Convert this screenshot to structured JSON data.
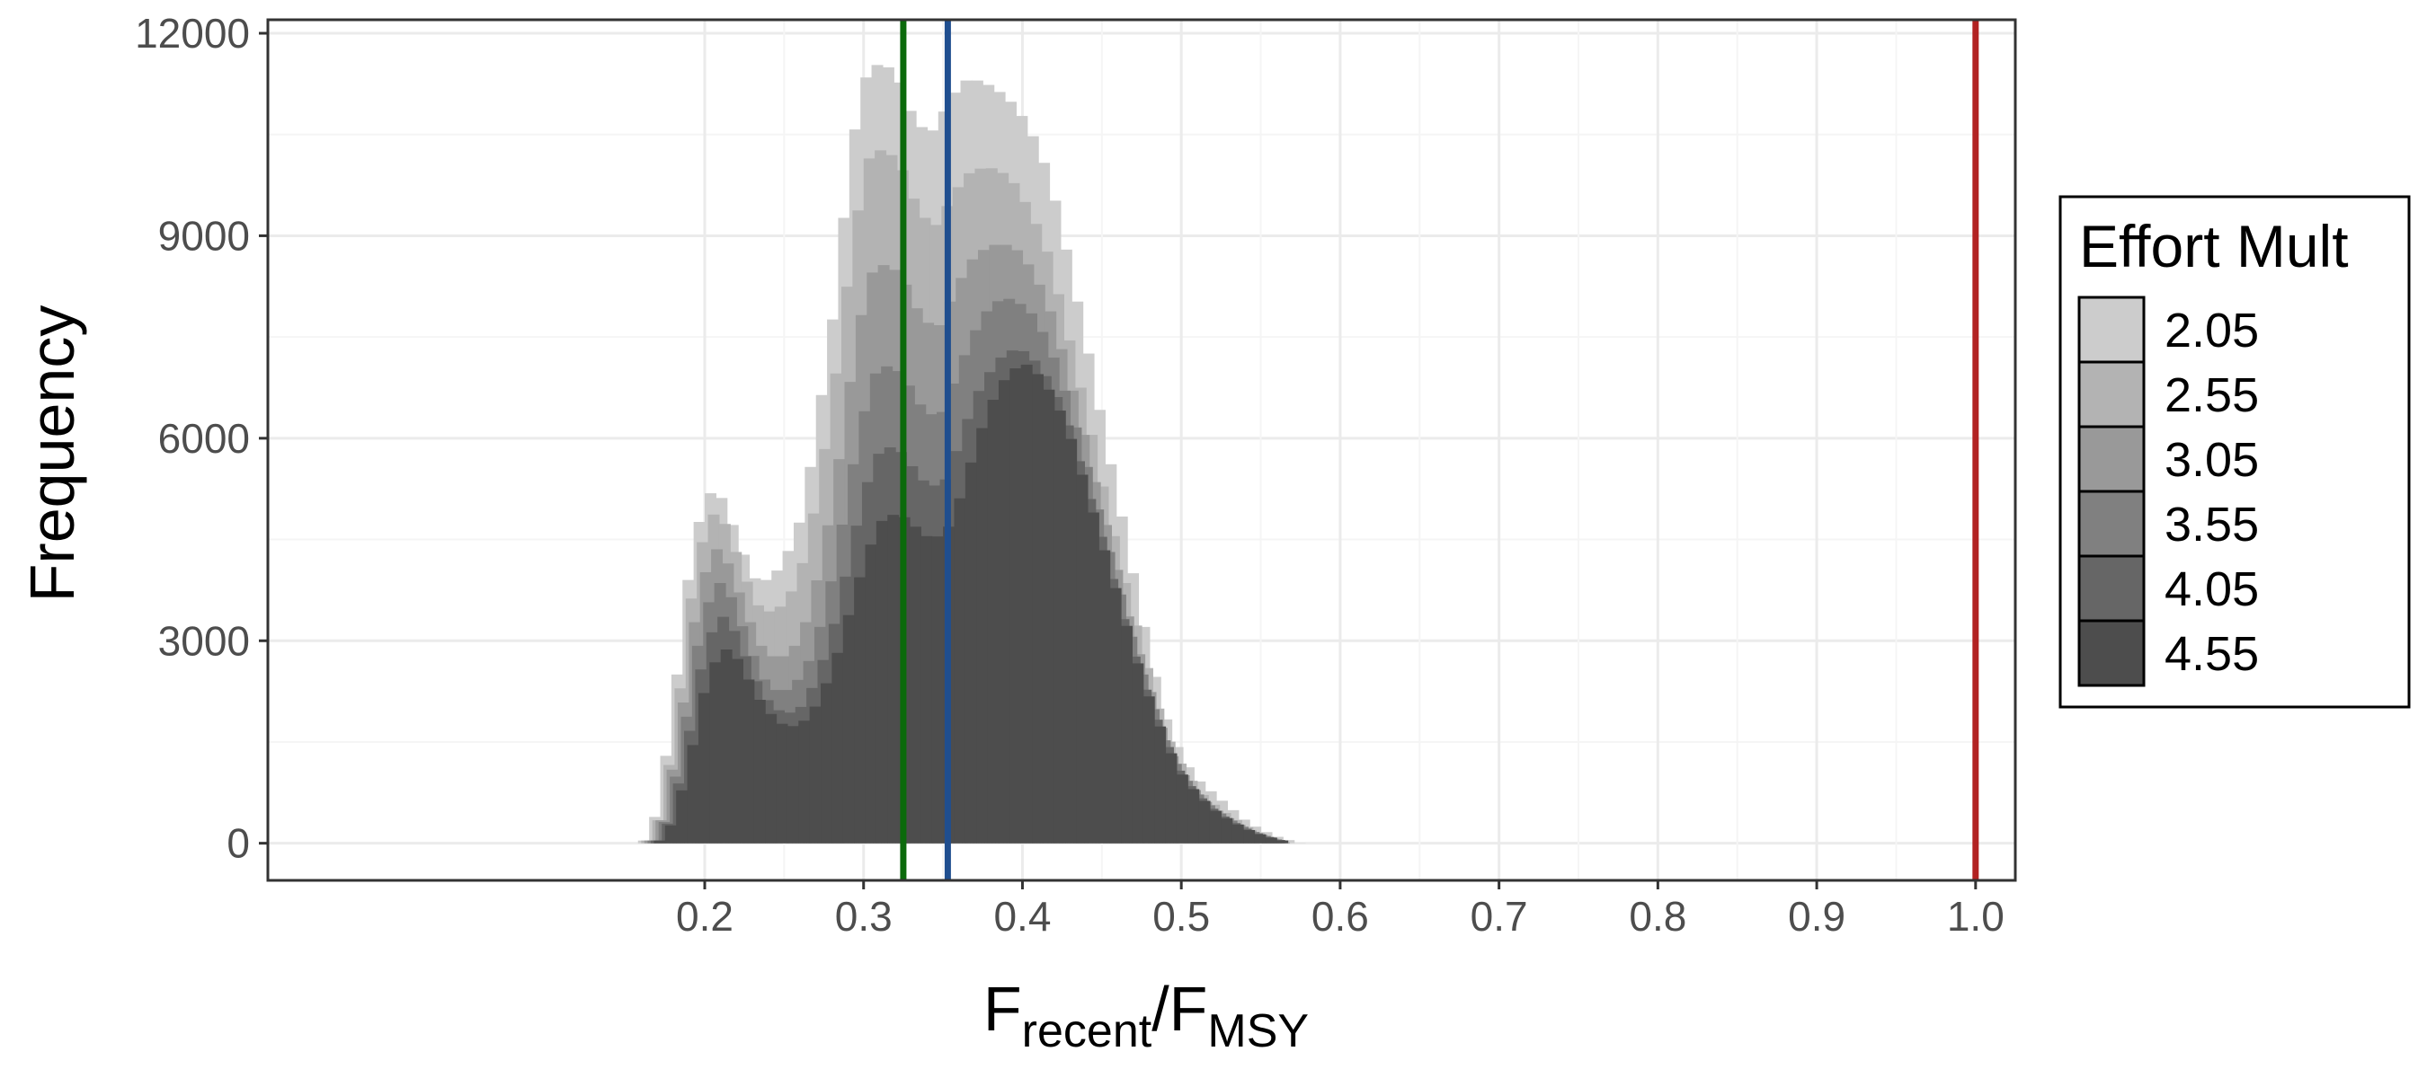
{
  "chart_data": {
    "type": "histogram",
    "xlabel": {
      "main": "F",
      "sub1": "recent",
      "slash": "/",
      "main2": "F",
      "sub2": "MSY"
    },
    "ylabel": "Frequency",
    "xlim": [
      -0.075,
      1.025
    ],
    "ylim": [
      -550,
      12200
    ],
    "x_ticks": [
      0.2,
      0.3,
      0.4,
      0.5,
      0.6,
      0.7,
      0.8,
      0.9,
      1.0
    ],
    "x_tick_labels": [
      "0.2",
      "0.3",
      "0.4",
      "0.5",
      "0.6",
      "0.7",
      "0.8",
      "0.9",
      "1.0"
    ],
    "y_ticks": [
      0,
      3000,
      6000,
      9000,
      12000
    ],
    "y_tick_labels": [
      "0",
      "3000",
      "6000",
      "9000",
      "12000"
    ],
    "grid": true,
    "legend": {
      "title": "Effort Mult",
      "placement": "right",
      "entries": [
        {
          "label": "2.05",
          "color": "#cccccc"
        },
        {
          "label": "2.55",
          "color": "#b3b3b3"
        },
        {
          "label": "3.05",
          "color": "#999999"
        },
        {
          "label": "3.55",
          "color": "#808080"
        },
        {
          "label": "4.05",
          "color": "#666666"
        },
        {
          "label": "4.55",
          "color": "#4d4d4d"
        }
      ]
    },
    "bin_width": 0.007,
    "series": [
      {
        "name": "2.05",
        "color": "#cccccc",
        "points": [
          [
            0.158,
            0
          ],
          [
            0.165,
            80
          ],
          [
            0.172,
            700
          ],
          [
            0.182,
            2400
          ],
          [
            0.192,
            4400
          ],
          [
            0.202,
            5200
          ],
          [
            0.212,
            5100
          ],
          [
            0.222,
            4400
          ],
          [
            0.232,
            3900
          ],
          [
            0.242,
            3900
          ],
          [
            0.252,
            4300
          ],
          [
            0.262,
            4900
          ],
          [
            0.272,
            6400
          ],
          [
            0.282,
            8000
          ],
          [
            0.292,
            10300
          ],
          [
            0.302,
            11400
          ],
          [
            0.312,
            11600
          ],
          [
            0.322,
            11300
          ],
          [
            0.332,
            10700
          ],
          [
            0.342,
            10500
          ],
          [
            0.352,
            10900
          ],
          [
            0.362,
            11300
          ],
          [
            0.372,
            11300
          ],
          [
            0.382,
            11200
          ],
          [
            0.392,
            11000
          ],
          [
            0.402,
            10700
          ],
          [
            0.412,
            10200
          ],
          [
            0.422,
            9400
          ],
          [
            0.432,
            8300
          ],
          [
            0.442,
            7200
          ],
          [
            0.452,
            6000
          ],
          [
            0.462,
            4900
          ],
          [
            0.472,
            3700
          ],
          [
            0.482,
            2600
          ],
          [
            0.492,
            1700
          ],
          [
            0.502,
            1200
          ],
          [
            0.512,
            900
          ],
          [
            0.522,
            700
          ],
          [
            0.532,
            500
          ],
          [
            0.542,
            300
          ],
          [
            0.552,
            180
          ],
          [
            0.562,
            80
          ],
          [
            0.575,
            0
          ]
        ]
      },
      {
        "name": "2.55",
        "color": "#b3b3b3",
        "points": [
          [
            0.16,
            0
          ],
          [
            0.167,
            80
          ],
          [
            0.174,
            600
          ],
          [
            0.184,
            2200
          ],
          [
            0.194,
            4100
          ],
          [
            0.204,
            4900
          ],
          [
            0.214,
            4700
          ],
          [
            0.224,
            4000
          ],
          [
            0.234,
            3500
          ],
          [
            0.244,
            3400
          ],
          [
            0.254,
            3700
          ],
          [
            0.264,
            4300
          ],
          [
            0.274,
            5600
          ],
          [
            0.284,
            7200
          ],
          [
            0.294,
            9100
          ],
          [
            0.304,
            10200
          ],
          [
            0.314,
            10300
          ],
          [
            0.324,
            10000
          ],
          [
            0.334,
            9400
          ],
          [
            0.344,
            9100
          ],
          [
            0.354,
            9500
          ],
          [
            0.364,
            9900
          ],
          [
            0.374,
            10000
          ],
          [
            0.384,
            10000
          ],
          [
            0.394,
            9800
          ],
          [
            0.404,
            9400
          ],
          [
            0.414,
            8900
          ],
          [
            0.424,
            8000
          ],
          [
            0.434,
            7000
          ],
          [
            0.444,
            6000
          ],
          [
            0.454,
            4900
          ],
          [
            0.464,
            3900
          ],
          [
            0.474,
            3000
          ],
          [
            0.484,
            2100
          ],
          [
            0.494,
            1400
          ],
          [
            0.504,
            1000
          ],
          [
            0.514,
            700
          ],
          [
            0.524,
            500
          ],
          [
            0.534,
            350
          ],
          [
            0.544,
            200
          ],
          [
            0.554,
            100
          ],
          [
            0.568,
            0
          ]
        ]
      },
      {
        "name": "3.05",
        "color": "#999999",
        "points": [
          [
            0.162,
            0
          ],
          [
            0.169,
            80
          ],
          [
            0.176,
            600
          ],
          [
            0.186,
            2000
          ],
          [
            0.196,
            3700
          ],
          [
            0.206,
            4400
          ],
          [
            0.216,
            4100
          ],
          [
            0.226,
            3400
          ],
          [
            0.236,
            2900
          ],
          [
            0.246,
            2700
          ],
          [
            0.256,
            2900
          ],
          [
            0.266,
            3400
          ],
          [
            0.276,
            4500
          ],
          [
            0.286,
            5900
          ],
          [
            0.296,
            7600
          ],
          [
            0.306,
            8500
          ],
          [
            0.316,
            8600
          ],
          [
            0.326,
            8300
          ],
          [
            0.336,
            7800
          ],
          [
            0.346,
            7600
          ],
          [
            0.356,
            8100
          ],
          [
            0.366,
            8600
          ],
          [
            0.376,
            8800
          ],
          [
            0.386,
            8900
          ],
          [
            0.396,
            8800
          ],
          [
            0.406,
            8500
          ],
          [
            0.416,
            8000
          ],
          [
            0.426,
            7200
          ],
          [
            0.436,
            6300
          ],
          [
            0.446,
            5300
          ],
          [
            0.456,
            4400
          ],
          [
            0.466,
            3400
          ],
          [
            0.476,
            2600
          ],
          [
            0.486,
            1800
          ],
          [
            0.496,
            1200
          ],
          [
            0.506,
            850
          ],
          [
            0.516,
            600
          ],
          [
            0.526,
            420
          ],
          [
            0.536,
            280
          ],
          [
            0.546,
            160
          ],
          [
            0.556,
            80
          ],
          [
            0.566,
            0
          ]
        ]
      },
      {
        "name": "3.55",
        "color": "#808080",
        "points": [
          [
            0.164,
            0
          ],
          [
            0.171,
            80
          ],
          [
            0.178,
            550
          ],
          [
            0.188,
            1800
          ],
          [
            0.198,
            3300
          ],
          [
            0.208,
            3900
          ],
          [
            0.218,
            3600
          ],
          [
            0.228,
            2900
          ],
          [
            0.238,
            2400
          ],
          [
            0.248,
            2200
          ],
          [
            0.258,
            2400
          ],
          [
            0.268,
            2800
          ],
          [
            0.278,
            3700
          ],
          [
            0.288,
            4900
          ],
          [
            0.298,
            6200
          ],
          [
            0.308,
            7000
          ],
          [
            0.318,
            7100
          ],
          [
            0.328,
            6800
          ],
          [
            0.338,
            6400
          ],
          [
            0.348,
            6300
          ],
          [
            0.358,
            6900
          ],
          [
            0.368,
            7500
          ],
          [
            0.378,
            7900
          ],
          [
            0.388,
            8100
          ],
          [
            0.398,
            8000
          ],
          [
            0.408,
            7800
          ],
          [
            0.418,
            7300
          ],
          [
            0.428,
            6600
          ],
          [
            0.438,
            5800
          ],
          [
            0.448,
            4900
          ],
          [
            0.458,
            4000
          ],
          [
            0.468,
            3100
          ],
          [
            0.478,
            2300
          ],
          [
            0.488,
            1600
          ],
          [
            0.498,
            1100
          ],
          [
            0.508,
            780
          ],
          [
            0.518,
            550
          ],
          [
            0.528,
            380
          ],
          [
            0.538,
            250
          ],
          [
            0.548,
            140
          ],
          [
            0.558,
            70
          ],
          [
            0.566,
            0
          ]
        ]
      },
      {
        "name": "4.05",
        "color": "#666666",
        "points": [
          [
            0.166,
            0
          ],
          [
            0.173,
            80
          ],
          [
            0.18,
            500
          ],
          [
            0.19,
            1600
          ],
          [
            0.2,
            2900
          ],
          [
            0.21,
            3400
          ],
          [
            0.22,
            3100
          ],
          [
            0.23,
            2500
          ],
          [
            0.24,
            2100
          ],
          [
            0.25,
            1900
          ],
          [
            0.26,
            2000
          ],
          [
            0.27,
            2400
          ],
          [
            0.28,
            3100
          ],
          [
            0.29,
            4100
          ],
          [
            0.3,
            5200
          ],
          [
            0.31,
            5800
          ],
          [
            0.32,
            5900
          ],
          [
            0.33,
            5600
          ],
          [
            0.34,
            5300
          ],
          [
            0.35,
            5300
          ],
          [
            0.36,
            5900
          ],
          [
            0.37,
            6600
          ],
          [
            0.38,
            7000
          ],
          [
            0.39,
            7300
          ],
          [
            0.4,
            7300
          ],
          [
            0.41,
            7100
          ],
          [
            0.42,
            6700
          ],
          [
            0.43,
            6100
          ],
          [
            0.44,
            5300
          ],
          [
            0.45,
            4500
          ],
          [
            0.46,
            3600
          ],
          [
            0.47,
            2800
          ],
          [
            0.48,
            2100
          ],
          [
            0.49,
            1500
          ],
          [
            0.5,
            1000
          ],
          [
            0.51,
            720
          ],
          [
            0.52,
            500
          ],
          [
            0.53,
            340
          ],
          [
            0.54,
            220
          ],
          [
            0.55,
            120
          ],
          [
            0.56,
            60
          ],
          [
            0.568,
            0
          ]
        ]
      },
      {
        "name": "4.55",
        "color": "#4d4d4d",
        "points": [
          [
            0.168,
            0
          ],
          [
            0.175,
            80
          ],
          [
            0.182,
            450
          ],
          [
            0.192,
            1400
          ],
          [
            0.202,
            2500
          ],
          [
            0.212,
            2900
          ],
          [
            0.222,
            2700
          ],
          [
            0.232,
            2200
          ],
          [
            0.242,
            1900
          ],
          [
            0.252,
            1700
          ],
          [
            0.262,
            1800
          ],
          [
            0.272,
            2100
          ],
          [
            0.282,
            2700
          ],
          [
            0.292,
            3500
          ],
          [
            0.302,
            4300
          ],
          [
            0.312,
            4800
          ],
          [
            0.322,
            4900
          ],
          [
            0.332,
            4700
          ],
          [
            0.342,
            4500
          ],
          [
            0.352,
            4600
          ],
          [
            0.362,
            5200
          ],
          [
            0.372,
            6000
          ],
          [
            0.382,
            6600
          ],
          [
            0.392,
            7000
          ],
          [
            0.402,
            7100
          ],
          [
            0.412,
            6900
          ],
          [
            0.422,
            6500
          ],
          [
            0.432,
            5900
          ],
          [
            0.442,
            5100
          ],
          [
            0.452,
            4300
          ],
          [
            0.462,
            3500
          ],
          [
            0.472,
            2700
          ],
          [
            0.482,
            2000
          ],
          [
            0.492,
            1400
          ],
          [
            0.502,
            950
          ],
          [
            0.512,
            680
          ],
          [
            0.522,
            470
          ],
          [
            0.532,
            320
          ],
          [
            0.542,
            200
          ],
          [
            0.552,
            110
          ],
          [
            0.562,
            50
          ],
          [
            0.57,
            0
          ]
        ]
      }
    ],
    "reference_lines": [
      {
        "x": 0.325,
        "color": "#0b6a0b"
      },
      {
        "x": 0.353,
        "color": "#1f4e8f"
      },
      {
        "x": 1.0,
        "color": "#b22222"
      }
    ]
  }
}
